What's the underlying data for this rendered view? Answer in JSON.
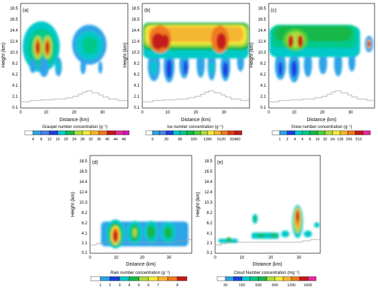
{
  "figure": {
    "panel_count": 5,
    "colormap": [
      "#ffffff",
      "#2ea4e8",
      "#4f7fe6",
      "#1e3fe0",
      "#00c9c9",
      "#00c98a",
      "#16b84a",
      "#4cd03a",
      "#aedc3e",
      "#f4ec3a",
      "#f5b630",
      "#f07a22",
      "#e03a1a",
      "#c41a1a",
      "#e82a9a",
      "#d21ab4"
    ]
  },
  "chart_data": [
    {
      "type": "heatmap",
      "panel_label": "(a)",
      "ylabel": "Height (km)",
      "xlabel": "Distance (km)",
      "xticks": [
        "0",
        "10",
        "20",
        "30"
      ],
      "yticks": [
        "0.1",
        "2.1",
        "4.1",
        "6.2",
        "8.2",
        "10.3",
        "12.4",
        "14.4",
        "16.5",
        "18.5"
      ],
      "xlim": [
        0,
        36
      ],
      "ylim": [
        0.1,
        19.5
      ],
      "colorbar_title": "Graupel number concentration (g⁻¹)",
      "colorbar_ticks": [
        "4",
        "8",
        "12",
        "16",
        "20",
        "24",
        "28",
        "32",
        "36",
        "40",
        "44",
        "48"
      ],
      "approx_max": 48,
      "features": [
        {
          "x": 7,
          "height": 12.4,
          "value": 44
        },
        {
          "x": 10,
          "height": 12.4,
          "value": 44
        },
        {
          "x": 28,
          "height": 12.0,
          "value": 20
        }
      ]
    },
    {
      "type": "heatmap",
      "panel_label": "(b)",
      "ylabel": "Height (km)",
      "xlabel": "Distance (km)",
      "xticks": [
        "0",
        "10",
        "20",
        "30"
      ],
      "yticks": [
        "0.1",
        "2.1",
        "4.1",
        "6.2",
        "8.2",
        "10.3",
        "12.4",
        "14.4",
        "16.5",
        "18.5"
      ],
      "xlim": [
        0,
        36
      ],
      "ylim": [
        0.1,
        19.5
      ],
      "colorbar_title": "Ice number concentration (g⁻¹)",
      "colorbar_ticks": [
        "0",
        "20",
        "80",
        "320",
        "1280",
        "5120",
        "20480"
      ],
      "features": [
        {
          "x": 8,
          "height": 12.4,
          "value": 20480
        },
        {
          "x": 30,
          "height": 12.4,
          "value": 20480
        },
        {
          "x": 20,
          "height": 13.5,
          "value": 1280
        }
      ]
    },
    {
      "type": "heatmap",
      "panel_label": "(c)",
      "ylabel": "Height (km)",
      "xlabel": "Distance (km)",
      "xticks": [
        "0",
        "10",
        "20",
        "30"
      ],
      "yticks": [
        "0.1",
        "2.1",
        "4.1",
        "6.2",
        "8.2",
        "10.3",
        "12.4",
        "14.4",
        "16.5",
        "18.5"
      ],
      "xlim": [
        0,
        36
      ],
      "ylim": [
        0.1,
        19.5
      ],
      "colorbar_title": "Snow number concentration (g⁻¹)",
      "colorbar_ticks": [
        "1",
        "2",
        "4",
        "4",
        "8",
        "16",
        "32",
        "64",
        "128",
        "256",
        "512"
      ],
      "features": [
        {
          "x": 8,
          "height": 12.4,
          "value": 512
        },
        {
          "x": 11,
          "height": 12.4,
          "value": 512
        },
        {
          "x": 35,
          "height": 12.4,
          "value": 512
        }
      ]
    },
    {
      "type": "heatmap",
      "panel_label": "(d)",
      "ylabel": "Height (km)",
      "xlabel": "Distance (km)",
      "xticks": [
        "0",
        "10",
        "20",
        "30"
      ],
      "yticks": [
        "0.1",
        "2.1",
        "4.1",
        "6.2",
        "8.2",
        "10.3",
        "12.4",
        "14.4",
        "16.5",
        "18.5"
      ],
      "xlim": [
        0,
        36
      ],
      "ylim": [
        0.1,
        19.5
      ],
      "colorbar_title": "Rain number concentration (g⁻¹)",
      "colorbar_ticks": [
        "1",
        "2",
        "3",
        "4",
        "5",
        "6",
        "7",
        "8"
      ],
      "features": [
        {
          "x": 10,
          "height": 4.0,
          "value": 8
        },
        {
          "x": 20,
          "height": 4.5,
          "value": 5
        }
      ]
    },
    {
      "type": "heatmap",
      "panel_label": "(e)",
      "ylabel": "Height (km)",
      "xlabel": "Distance (km)",
      "xticks": [
        "0",
        "10",
        "20",
        "30"
      ],
      "yticks": [
        "0.1",
        "2.1",
        "4.1",
        "6.2",
        "8.2",
        "10.3",
        "12.4",
        "14.4",
        "16.5",
        "18.5"
      ],
      "xlim": [
        0,
        36
      ],
      "ylim": [
        0.1,
        19.5
      ],
      "colorbar_title": "Cloud Number concentration (mg⁻¹)",
      "colorbar_ticks": [
        "20",
        "150",
        "500",
        "900",
        "1200",
        "1600"
      ],
      "features": [
        {
          "x": 29,
          "height": 7.0,
          "value": 1600
        },
        {
          "x": 13,
          "height": 6.2,
          "value": 150
        }
      ]
    }
  ]
}
